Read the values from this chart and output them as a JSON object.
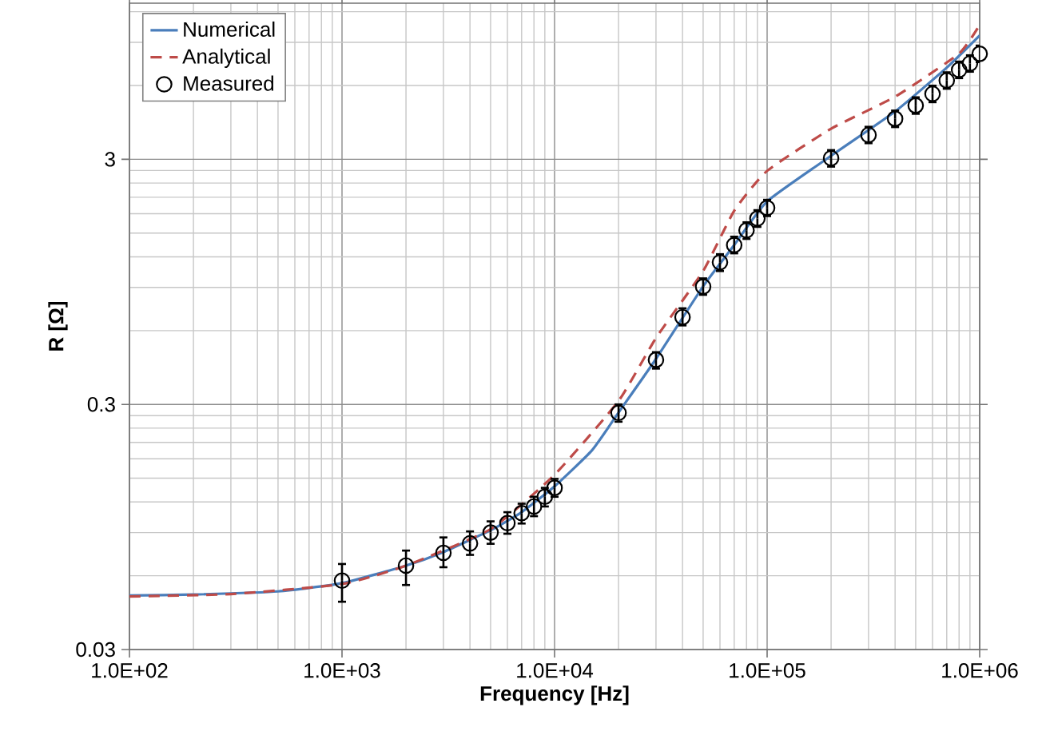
{
  "chart_data": {
    "type": "line",
    "xlabel": "Frequency [Hz]",
    "ylabel": "R [Ω]",
    "log": "xy",
    "grid": true,
    "legend": "top left",
    "xlim": [
      100,
      1000000
    ],
    "ylim": [
      0.03,
      13
    ],
    "xticks": [
      {
        "value": 100,
        "label": "1.0E+02"
      },
      {
        "value": 1000,
        "label": "1.0E+03"
      },
      {
        "value": 10000,
        "label": "1.0E+04"
      },
      {
        "value": 100000,
        "label": "1.0E+05"
      },
      {
        "value": 1000000,
        "label": "1.0E+06"
      }
    ],
    "yticks": [
      0.03,
      0.3,
      3
    ],
    "series": [
      {
        "name": "Numerical",
        "color": "#4a7ebb",
        "line_style": "solid",
        "marker": "none",
        "x": [
          100,
          200,
          500,
          1000,
          2000,
          3000,
          5000,
          7000,
          10000,
          15000,
          20000,
          30000,
          50000,
          70000,
          100000,
          200000,
          400000,
          700000,
          1000000
        ],
        "values": [
          0.0498,
          0.0503,
          0.0518,
          0.056,
          0.066,
          0.075,
          0.092,
          0.109,
          0.139,
          0.195,
          0.278,
          0.46,
          0.91,
          1.34,
          2.02,
          3.1,
          4.7,
          7.1,
          9.6
        ]
      },
      {
        "name": "Analytical",
        "color": "#be4b48",
        "line_style": "dashed",
        "marker": "none",
        "x": [
          100,
          300,
          1000,
          2000,
          5000,
          10000,
          20000,
          30000,
          50000,
          70000,
          100000,
          200000,
          400000,
          800000,
          1000000
        ],
        "values": [
          0.0494,
          0.0505,
          0.0555,
          0.066,
          0.093,
          0.155,
          0.31,
          0.56,
          1.05,
          1.85,
          2.69,
          4.0,
          5.4,
          8.1,
          10.6
        ]
      },
      {
        "name": "Measured",
        "type": "scatter",
        "color": "#000000",
        "marker": "circle",
        "x": [
          1000,
          2000,
          3000,
          4000,
          5000,
          6000,
          7000,
          8000,
          9000,
          10000,
          20000,
          30000,
          40000,
          50000,
          60000,
          70000,
          80000,
          90000,
          100000,
          200000,
          300000,
          400000,
          500000,
          600000,
          700000,
          800000,
          900000,
          1000000
        ],
        "values": [
          0.0573,
          0.066,
          0.0744,
          0.0813,
          0.09,
          0.0984,
          0.108,
          0.115,
          0.126,
          0.137,
          0.277,
          0.456,
          0.681,
          0.907,
          1.14,
          1.34,
          1.54,
          1.72,
          1.9,
          3.03,
          3.77,
          4.39,
          4.97,
          5.55,
          6.29,
          6.95,
          7.38,
          8.08
        ],
        "errors": [
          [
            0.047,
            0.067
          ],
          [
            0.055,
            0.076
          ],
          [
            0.065,
            0.086
          ],
          [
            0.073,
            0.091
          ],
          [
            0.081,
            0.1
          ],
          [
            0.089,
            0.109
          ],
          [
            0.098,
            0.118
          ],
          [
            0.105,
            0.126
          ],
          [
            0.115,
            0.137
          ],
          [
            0.126,
            0.149
          ],
          [
            0.255,
            0.3
          ],
          [
            0.42,
            0.49
          ],
          [
            0.63,
            0.74
          ],
          [
            0.84,
            0.98
          ],
          [
            1.05,
            1.23
          ],
          [
            1.24,
            1.45
          ],
          [
            1.42,
            1.66
          ],
          [
            1.59,
            1.86
          ],
          [
            1.76,
            2.05
          ],
          [
            2.8,
            3.27
          ],
          [
            3.49,
            4.07
          ],
          [
            4.06,
            4.74
          ],
          [
            4.6,
            5.37
          ],
          [
            5.13,
            5.99
          ],
          [
            5.82,
            6.79
          ],
          [
            6.43,
            7.51
          ],
          [
            6.83,
            7.97
          ],
          [
            7.47,
            8.73
          ]
        ]
      }
    ]
  }
}
